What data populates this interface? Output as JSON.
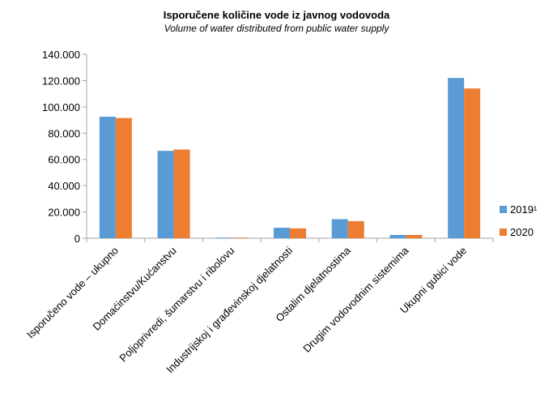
{
  "chart_data": {
    "type": "bar",
    "title": "Isporučene količine vode iz javnog vodovoda",
    "subtitle": "Volume of water distributed from public water supply",
    "categories": [
      "Isporučeno vode – ukupno",
      "Domaćinstvu/Kućanstvu",
      "Poljoprivredi, šumarstvu i ribolovu",
      "Industrijskoj i građevinskoj djelatnosti",
      "Ostalim djelatnostima",
      "Drugim vodovodnim sistemima",
      "Ukupni gubici vode"
    ],
    "series": [
      {
        "name": "2019¹",
        "color": "#5B9BD5",
        "values": [
          92500,
          66500,
          400,
          8000,
          14500,
          2500,
          122000
        ]
      },
      {
        "name": "2020",
        "color": "#ED7D31",
        "values": [
          91500,
          67500,
          400,
          7500,
          13000,
          2500,
          114000
        ]
      }
    ],
    "ylim": [
      0,
      140000
    ],
    "yticks": [
      "0",
      "20.000",
      "40.000",
      "60.000",
      "80.000",
      "100.000",
      "120.000",
      "140.000"
    ],
    "ytick_values": [
      0,
      20000,
      40000,
      60000,
      80000,
      100000,
      120000,
      140000
    ],
    "grid": false,
    "legend_position": "right"
  }
}
